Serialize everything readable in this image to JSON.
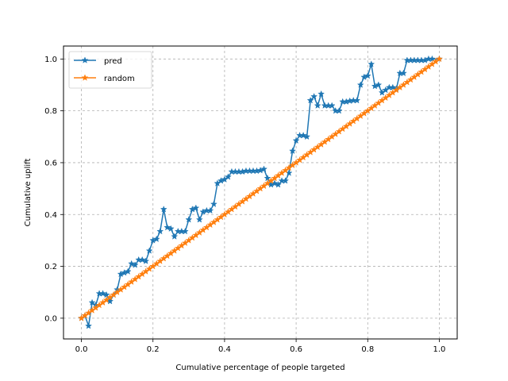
{
  "chart_data": {
    "type": "line",
    "title": "",
    "xlabel": "Cumulative percentage of people targeted",
    "ylabel": "Cumulative uplift",
    "xlim": [
      -0.05,
      1.05
    ],
    "ylim": [
      -0.08,
      1.05
    ],
    "xticks": [
      0.0,
      0.2,
      0.4,
      0.6,
      0.8,
      1.0
    ],
    "yticks": [
      0.0,
      0.2,
      0.4,
      0.6,
      0.8,
      1.0
    ],
    "xtick_labels": [
      "0.0",
      "0.2",
      "0.4",
      "0.6",
      "0.8",
      "1.0"
    ],
    "ytick_labels": [
      "0.0",
      "0.2",
      "0.4",
      "0.6",
      "0.8",
      "1.0"
    ],
    "grid": true,
    "legend_position": "top-left",
    "colors": {
      "pred": "#1f77b4",
      "random": "#ff7f0e",
      "grid": "#b0b0b0"
    },
    "series": [
      {
        "name": "pred",
        "marker": "star",
        "points": [
          [
            0.0,
            0.0
          ],
          [
            0.01,
            0.01
          ],
          [
            0.02,
            -0.03
          ],
          [
            0.03,
            0.06
          ],
          [
            0.04,
            0.05
          ],
          [
            0.05,
            0.095
          ],
          [
            0.06,
            0.095
          ],
          [
            0.07,
            0.09
          ],
          [
            0.08,
            0.065
          ],
          [
            0.09,
            0.09
          ],
          [
            0.1,
            0.11
          ],
          [
            0.11,
            0.17
          ],
          [
            0.12,
            0.175
          ],
          [
            0.13,
            0.18
          ],
          [
            0.14,
            0.21
          ],
          [
            0.15,
            0.205
          ],
          [
            0.16,
            0.225
          ],
          [
            0.17,
            0.225
          ],
          [
            0.18,
            0.22
          ],
          [
            0.19,
            0.26
          ],
          [
            0.2,
            0.3
          ],
          [
            0.21,
            0.305
          ],
          [
            0.22,
            0.335
          ],
          [
            0.23,
            0.42
          ],
          [
            0.24,
            0.35
          ],
          [
            0.25,
            0.345
          ],
          [
            0.26,
            0.315
          ],
          [
            0.27,
            0.335
          ],
          [
            0.28,
            0.335
          ],
          [
            0.29,
            0.335
          ],
          [
            0.3,
            0.38
          ],
          [
            0.31,
            0.42
          ],
          [
            0.32,
            0.425
          ],
          [
            0.33,
            0.38
          ],
          [
            0.34,
            0.41
          ],
          [
            0.35,
            0.415
          ],
          [
            0.36,
            0.415
          ],
          [
            0.37,
            0.44
          ],
          [
            0.38,
            0.52
          ],
          [
            0.39,
            0.53
          ],
          [
            0.4,
            0.535
          ],
          [
            0.41,
            0.545
          ],
          [
            0.42,
            0.565
          ],
          [
            0.43,
            0.565
          ],
          [
            0.44,
            0.565
          ],
          [
            0.45,
            0.565
          ],
          [
            0.46,
            0.568
          ],
          [
            0.47,
            0.568
          ],
          [
            0.48,
            0.568
          ],
          [
            0.49,
            0.568
          ],
          [
            0.5,
            0.57
          ],
          [
            0.51,
            0.575
          ],
          [
            0.52,
            0.54
          ],
          [
            0.53,
            0.515
          ],
          [
            0.54,
            0.52
          ],
          [
            0.55,
            0.515
          ],
          [
            0.56,
            0.53
          ],
          [
            0.57,
            0.53
          ],
          [
            0.58,
            0.56
          ],
          [
            0.59,
            0.645
          ],
          [
            0.6,
            0.685
          ],
          [
            0.61,
            0.705
          ],
          [
            0.62,
            0.705
          ],
          [
            0.63,
            0.7
          ],
          [
            0.64,
            0.84
          ],
          [
            0.65,
            0.855
          ],
          [
            0.66,
            0.82
          ],
          [
            0.67,
            0.865
          ],
          [
            0.68,
            0.82
          ],
          [
            0.69,
            0.82
          ],
          [
            0.7,
            0.82
          ],
          [
            0.71,
            0.8
          ],
          [
            0.72,
            0.8
          ],
          [
            0.73,
            0.835
          ],
          [
            0.74,
            0.835
          ],
          [
            0.75,
            0.838
          ],
          [
            0.76,
            0.84
          ],
          [
            0.77,
            0.84
          ],
          [
            0.78,
            0.9
          ],
          [
            0.79,
            0.93
          ],
          [
            0.8,
            0.935
          ],
          [
            0.81,
            0.98
          ],
          [
            0.82,
            0.895
          ],
          [
            0.83,
            0.9
          ],
          [
            0.84,
            0.87
          ],
          [
            0.85,
            0.88
          ],
          [
            0.86,
            0.89
          ],
          [
            0.87,
            0.89
          ],
          [
            0.88,
            0.885
          ],
          [
            0.89,
            0.945
          ],
          [
            0.9,
            0.945
          ],
          [
            0.91,
            0.995
          ],
          [
            0.92,
            0.995
          ],
          [
            0.93,
            0.995
          ],
          [
            0.94,
            0.995
          ],
          [
            0.95,
            0.995
          ],
          [
            0.96,
            0.995
          ],
          [
            0.97,
            1.0
          ],
          [
            0.98,
            1.0
          ],
          [
            1.0,
            1.0
          ]
        ]
      },
      {
        "name": "random",
        "marker": "star",
        "linear_from": [
          0.0,
          0.0
        ],
        "linear_to": [
          1.0,
          1.0
        ],
        "n_points": 101
      }
    ]
  }
}
